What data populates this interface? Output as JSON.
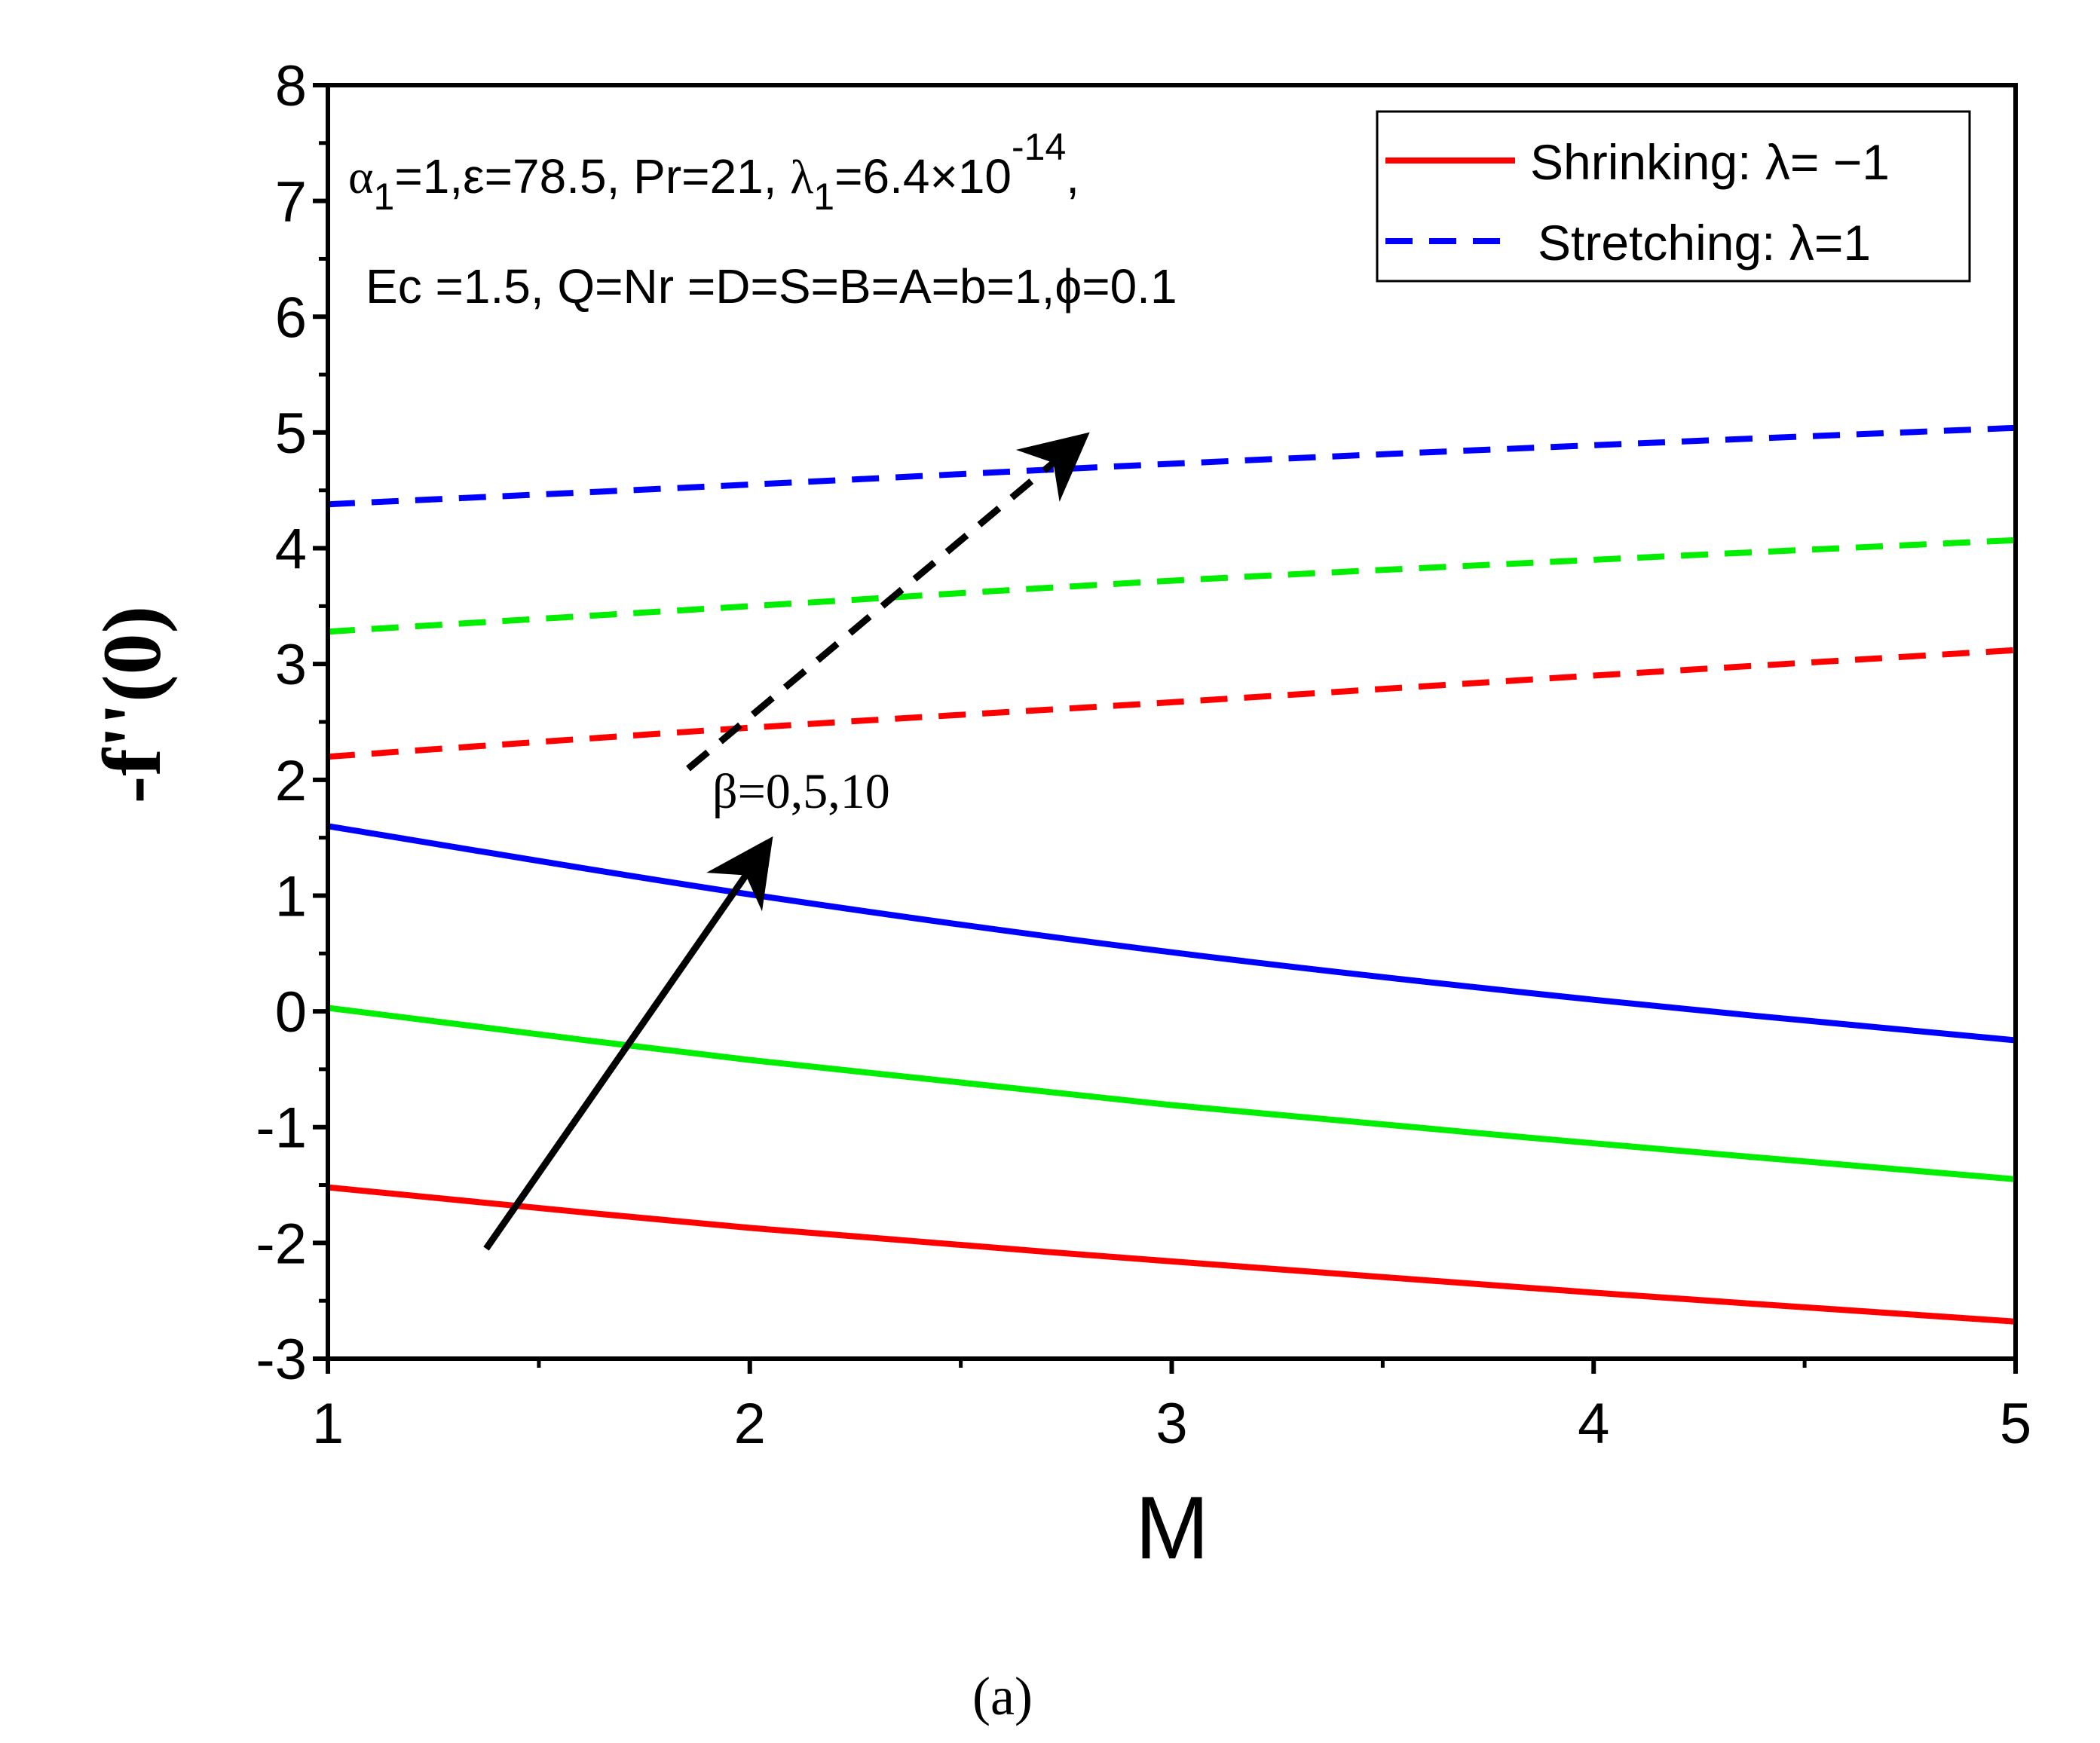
{
  "chart_data": {
    "type": "line",
    "title": "",
    "xlabel": "M",
    "ylabel": "-f''(0)",
    "xlim": [
      1,
      5
    ],
    "ylim": [
      -3,
      8
    ],
    "xticks": [
      1,
      2,
      3,
      4,
      5
    ],
    "yticks": [
      -3,
      -2,
      -1,
      0,
      1,
      2,
      3,
      4,
      5,
      6,
      7,
      8
    ],
    "x": [
      1,
      2,
      3,
      4,
      5
    ],
    "series": [
      {
        "name": "Shrinking beta=0",
        "color": "#ff0000",
        "dash": "solid",
        "values": [
          -1.52,
          -1.87,
          -2.16,
          -2.43,
          -2.68
        ]
      },
      {
        "name": "Shrinking beta=5",
        "color": "#00ee00",
        "dash": "solid",
        "values": [
          0.03,
          -0.42,
          -0.81,
          -1.14,
          -1.45
        ]
      },
      {
        "name": "Shrinking beta=10",
        "color": "#0000ff",
        "dash": "solid",
        "values": [
          1.6,
          1.01,
          0.51,
          0.1,
          -0.25
        ]
      },
      {
        "name": "Stretching beta=0",
        "color": "#ff0000",
        "dash": "dashed",
        "values": [
          2.2,
          2.45,
          2.67,
          2.9,
          3.12
        ]
      },
      {
        "name": "Stretching beta=5",
        "color": "#00ee00",
        "dash": "dashed",
        "values": [
          3.28,
          3.5,
          3.72,
          3.9,
          4.07
        ]
      },
      {
        "name": "Stretching beta=10",
        "color": "#0000ff",
        "dash": "dashed",
        "values": [
          4.38,
          4.55,
          4.73,
          4.89,
          5.04
        ]
      }
    ],
    "legend": {
      "placement": "top-right",
      "entries": [
        {
          "label": "Shrinking: λ= −1",
          "color": "#ff0000",
          "dash": "solid"
        },
        {
          "label": "Stretching: λ=1",
          "color": "#0000ff",
          "dash": "dashed"
        }
      ]
    },
    "annotations": {
      "params_line1_alpha": "α",
      "params_line1_alpha_sub": "1",
      "params_line1_mid": "=1,ε=78.5, Pr=21, ",
      "params_line1_lambda": "λ",
      "params_line1_lambda_sub": "1",
      "params_line1_val": "=6.4×10",
      "params_line1_exp": "-14",
      "params_line1_end": ",",
      "params_line2": "Ec =1.5, Q=Nr =D=S=B=A=b=1,ϕ=0.1",
      "beta_label": "β=0,5,10"
    },
    "caption": "(a)"
  }
}
